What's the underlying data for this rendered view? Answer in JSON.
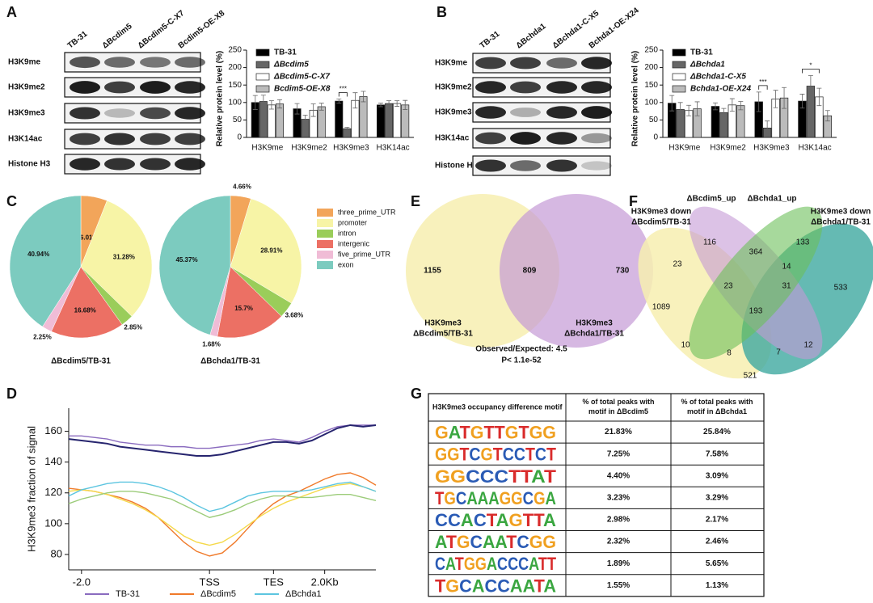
{
  "panels": [
    "A",
    "B",
    "C",
    "D",
    "E",
    "F",
    "G"
  ],
  "blots": [
    {
      "lanes": [
        "TB-31",
        "ΔBcdim5",
        "ΔBcdim5-C-X7",
        "Bcdim5-OE-X8"
      ],
      "rows": [
        "H3K9me",
        "H3K9me2",
        "H3K9me3",
        "H3K14ac",
        "Histone H3"
      ]
    },
    {
      "lanes": [
        "TB-31",
        "ΔBchda1",
        "ΔBchda1-C-X5",
        "Bchda1-OE-X24"
      ],
      "rows": [
        "H3K9me",
        "H3K9me2",
        "H3K9me3",
        "H3K14ac",
        "Histone H3"
      ]
    }
  ],
  "chart_data": [
    {
      "type": "bar",
      "y_label": "Relative protein level (%)",
      "categories": [
        "H3K9me",
        "H3K9me2",
        "H3K9me3",
        "H3K14ac"
      ],
      "ylim": [
        0,
        250
      ],
      "yticks": [
        0,
        50,
        100,
        150,
        200,
        250
      ],
      "series": [
        {
          "name": "TB-31",
          "color": "#000000",
          "values": [
            100,
            82,
            104,
            93
          ],
          "errors": [
            20,
            15,
            6,
            5
          ]
        },
        {
          "name": "ΔBcdim5",
          "color": "#666666",
          "values": [
            103,
            52,
            25,
            97
          ],
          "errors": [
            18,
            12,
            4,
            8
          ]
        },
        {
          "name": "ΔBcdim5-C-X7",
          "color": "#ffffff",
          "values": [
            93,
            78,
            106,
            97
          ],
          "errors": [
            12,
            18,
            22,
            8
          ]
        },
        {
          "name": "Bcdim5-OE-X8",
          "color": "#bbbbbb",
          "values": [
            96,
            88,
            117,
            93
          ],
          "errors": [
            12,
            10,
            15,
            13
          ]
        }
      ],
      "annotations": [
        {
          "text": "***",
          "category": "H3K9me3",
          "between": [
            "TB-31",
            "ΔBcdim5"
          ]
        }
      ]
    },
    {
      "type": "bar",
      "y_label": "Relative protein level (%)",
      "categories": [
        "H3K9me",
        "H3K9me2",
        "H3K9me3",
        "H3K14ac"
      ],
      "ylim": [
        0,
        250
      ],
      "yticks": [
        0,
        50,
        100,
        150,
        200,
        250
      ],
      "series": [
        {
          "name": "TB-31",
          "color": "#000000",
          "values": [
            98,
            89,
            102,
            104
          ],
          "errors": [
            22,
            10,
            28,
            20
          ]
        },
        {
          "name": "ΔBchda1",
          "color": "#666666",
          "values": [
            80,
            71,
            27,
            147
          ],
          "errors": [
            20,
            12,
            20,
            30
          ]
        },
        {
          "name": "ΔBchda1-C-X5",
          "color": "#ffffff",
          "values": [
            77,
            93,
            110,
            116
          ],
          "errors": [
            15,
            18,
            25,
            25
          ]
        },
        {
          "name": "Bchda1-OE-X24",
          "color": "#bbbbbb",
          "values": [
            82,
            91,
            113,
            62
          ],
          "errors": [
            20,
            12,
            30,
            15
          ]
        }
      ],
      "annotations": [
        {
          "text": "***",
          "category": "H3K9me3",
          "between": [
            "TB-31",
            "ΔBchda1"
          ]
        },
        {
          "text": "*",
          "category": "H3K14ac",
          "between": [
            "TB-31",
            "ΔBchda1-C-X5"
          ]
        }
      ]
    },
    {
      "type": "pie",
      "categories": [
        "three_prime_UTR",
        "promoter",
        "intron",
        "intergenic",
        "five_prime_UTR",
        "exon"
      ],
      "colors": [
        "#f2a55a",
        "#f7f4a6",
        "#9acd5a",
        "#ec7064",
        "#f0bcd6",
        "#7ccbbf"
      ],
      "series": [
        {
          "name": "ΔBcdim5/TB-31",
          "values": [
            6.01,
            31.28,
            2.85,
            16.68,
            2.25,
            40.94
          ],
          "value_labels": [
            "6.01%",
            "31.28%",
            "2.85%",
            "16.68%",
            "2.25%",
            "40.94%"
          ]
        },
        {
          "name": "ΔBchda1/TB-31",
          "values": [
            4.66,
            28.91,
            3.68,
            15.7,
            1.68,
            45.37
          ],
          "value_labels": [
            "4.66%",
            "28.91%",
            "3.68%",
            "15.7%",
            "1.68%",
            "45.37%"
          ]
        }
      ]
    },
    {
      "type": "line",
      "y_label": "H3K9me3 fraction of signal",
      "categories": [
        null,
        "-2.0",
        null,
        null,
        null,
        null,
        null,
        null,
        null,
        null,
        null,
        "TSS",
        null,
        null,
        null,
        null,
        "TES",
        null,
        null,
        null,
        "2.0Kb",
        null,
        null,
        null,
        null
      ],
      "ylim": [
        70,
        175
      ],
      "yticks": [
        80,
        100,
        120,
        140,
        160
      ],
      "series": [
        {
          "name": "TB-31",
          "color": "#8a6bbf",
          "values": [
            157,
            157,
            156,
            155,
            153,
            152,
            151,
            151,
            150,
            150,
            149,
            149,
            150,
            151,
            152,
            154,
            155,
            154,
            153,
            156,
            160,
            163,
            164,
            164,
            164
          ]
        },
        {
          "color": "#26246e",
          "values": [
            155,
            154,
            153,
            152,
            150,
            149,
            148,
            147,
            146,
            145,
            144,
            144,
            145,
            147,
            149,
            151,
            153,
            153,
            152,
            154,
            158,
            162,
            164,
            163,
            164
          ]
        },
        {
          "name": "ΔBcdim5",
          "color": "#f07a2a",
          "values": [
            123,
            122,
            121,
            119,
            117,
            114,
            110,
            104,
            96,
            88,
            82,
            79,
            81,
            88,
            97,
            106,
            113,
            118,
            121,
            125,
            129,
            132,
            133,
            130,
            125
          ]
        },
        {
          "color": "#f5d94a",
          "values": [
            121,
            122,
            121,
            119,
            116,
            113,
            109,
            104,
            98,
            92,
            88,
            86,
            88,
            93,
            99,
            105,
            110,
            114,
            117,
            120,
            123,
            125,
            126,
            124,
            121
          ]
        },
        {
          "name": "ΔBchda1",
          "color": "#5cc5e0",
          "values": [
            118,
            122,
            124,
            126,
            127,
            127,
            126,
            124,
            121,
            117,
            112,
            108,
            110,
            114,
            118,
            120,
            121,
            121,
            121,
            122,
            124,
            126,
            127,
            124,
            121
          ]
        },
        {
          "color": "#9ccc7a",
          "values": [
            113,
            116,
            118,
            120,
            121,
            121,
            120,
            118,
            116,
            112,
            108,
            104,
            106,
            109,
            113,
            116,
            118,
            118,
            117,
            117,
            118,
            119,
            119,
            117,
            115
          ]
        }
      ]
    }
  ],
  "venn_e": {
    "counts": [
      "1155",
      "809",
      "730"
    ],
    "sets": [
      [
        "H3K9me3",
        "ΔBcdim5/TB-31"
      ],
      [
        "H3K9me3",
        "ΔBchda1/TB-31"
      ]
    ],
    "stats": [
      "Observed/Expected: 4.5",
      "P< 1.1e-52"
    ]
  },
  "venn_f": {
    "sets": [
      [
        "H3K9me3 down",
        "ΔBcdim5/TB-31"
      ],
      [
        "ΔBcdim5_up"
      ],
      [
        "ΔBchda1_up"
      ],
      [
        "H3K9me3 down",
        "ΔBchda1/TB-31"
      ]
    ],
    "counts": [
      "1089",
      "116",
      "133",
      "533",
      "23",
      "364",
      "14",
      "23",
      "31",
      "193",
      "10",
      "12",
      "8",
      "7",
      "521"
    ]
  },
  "table": {
    "header": [
      "H3K9me3 occupancy difference motif",
      "% of total peaks with motif in ΔBcdim5",
      "% of total peaks with motif in ΔBchda1"
    ],
    "rows": [
      [
        "GATGTTGTGG",
        "21.83%",
        "25.84%"
      ],
      [
        "GGTCGTCCTCT",
        "7.25%",
        "7.58%"
      ],
      [
        "GGCCCTTAT",
        "4.40%",
        "3.09%"
      ],
      [
        "TGCAAAGGCGA",
        "3.23%",
        "3.29%"
      ],
      [
        "CCACTAGTTA",
        "2.98%",
        "2.17%"
      ],
      [
        "ATGCAATCGG",
        "2.32%",
        "2.46%"
      ],
      [
        "CATGGACCCATT",
        "1.89%",
        "5.65%"
      ],
      [
        "TGCACCAATA",
        "1.55%",
        "1.13%"
      ]
    ]
  }
}
